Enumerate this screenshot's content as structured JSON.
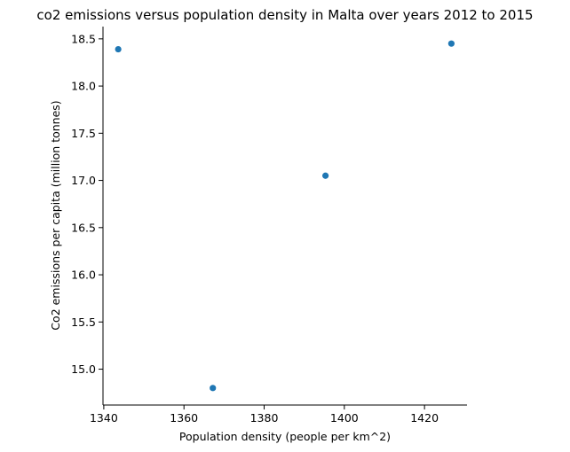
{
  "chart_data": {
    "type": "scatter",
    "title": "co2 emissions versus population density in Malta over years 2012 to 2015",
    "xlabel": "Population density (people per km^2)",
    "ylabel": "Co2 emissions per capita (million tonnes)",
    "xlim": [
      1339.8,
      1430.6
    ],
    "ylim": [
      14.62,
      18.63
    ],
    "xticks": [
      1340,
      1360,
      1380,
      1400,
      1420
    ],
    "xtick_labels": [
      "1340",
      "1360",
      "1380",
      "1400",
      "1420"
    ],
    "yticks": [
      15.0,
      15.5,
      16.0,
      16.5,
      17.0,
      17.5,
      18.0,
      18.5
    ],
    "ytick_labels": [
      "15.0",
      "15.5",
      "16.0",
      "16.5",
      "17.0",
      "17.5",
      "18.0",
      "18.5"
    ],
    "grid": false,
    "spines": "left-bottom",
    "marker_color": "#1f77b4",
    "x": [
      1343.6,
      1367.2,
      1395.3,
      1426.7
    ],
    "y": [
      18.39,
      14.8,
      17.05,
      18.45
    ]
  }
}
